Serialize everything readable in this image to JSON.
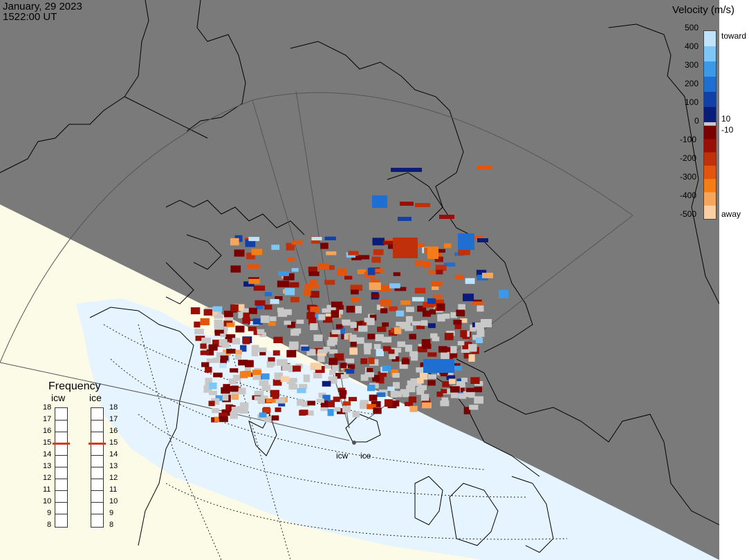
{
  "header": {
    "date": "January, 29 2023",
    "time": "1522:00 UT"
  },
  "colorbar": {
    "title": "Velocity (m/s)",
    "toward_label": "toward",
    "away_label": "away",
    "positive_ticks": [
      "500",
      "400",
      "300",
      "200",
      "100",
      "0"
    ],
    "negative_ticks": [
      "-100",
      "-200",
      "-300",
      "-400",
      "-500"
    ],
    "near_zero_pos": "10",
    "near_zero_neg": "-10",
    "toward_colors": [
      "#bfe3fb",
      "#7ec6f5",
      "#3b9ae8",
      "#1f6fd2",
      "#1040a8",
      "#0a1c7a"
    ],
    "away_colors": [
      "#7a0000",
      "#9a0f05",
      "#c0300a",
      "#e3550c",
      "#f47d16",
      "#f6a65a",
      "#f9d0a4"
    ]
  },
  "frequency": {
    "title": "Frequency",
    "radars": [
      {
        "name": "icw",
        "current": 15
      },
      {
        "name": "ice",
        "current": 15
      }
    ],
    "scale": [
      "18",
      "17",
      "16",
      "15",
      "14",
      "13",
      "12",
      "11",
      "10",
      "9",
      "8"
    ]
  },
  "radar_sites": [
    {
      "name": "icw"
    },
    {
      "name": "ice"
    }
  ],
  "colors": {
    "night": "#7a7a7a",
    "day_land": "#fbfbe8",
    "day_ocean": "#e6f4ff",
    "ground_scatter": "#c8c8c8",
    "indicator": "#d23a1e"
  }
}
